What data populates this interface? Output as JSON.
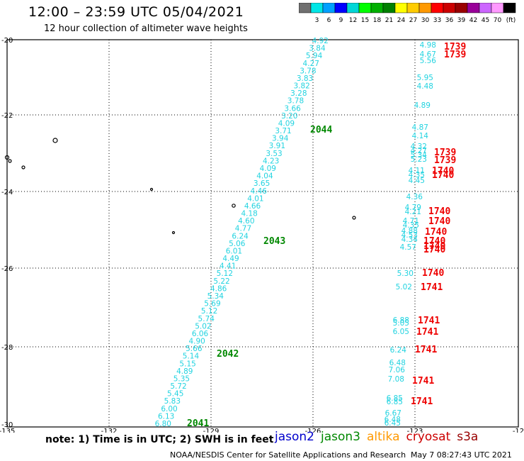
{
  "title": "12:00 – 23:59 UTC 05/04/2021",
  "subtitle": "12 hour collection of altimeter wave heights",
  "color_scale": {
    "colors": [
      "#707070",
      "#00e6e6",
      "#00a0ff",
      "#0000ff",
      "#00d6d6",
      "#00ff00",
      "#00b000",
      "#008000",
      "#ffff00",
      "#ffcc00",
      "#ff9900",
      "#ff0000",
      "#cc0000",
      "#990000",
      "#990099",
      "#cc66ff",
      "#ff99ff",
      "#000000"
    ],
    "labels": [
      "3",
      "6",
      "9",
      "12",
      "15",
      "18",
      "21",
      "24",
      "27",
      "30",
      "33",
      "36",
      "39",
      "42",
      "45",
      "70"
    ],
    "unit": "(ft)"
  },
  "axes": {
    "lon_labels": [
      "-135",
      "-132",
      "-129",
      "-126",
      "-123",
      "-12"
    ],
    "lat_labels": [
      "-20",
      "-22",
      "-24",
      "-26",
      "-28",
      "-30"
    ]
  },
  "track_times": {
    "jason3": [
      "2044",
      "2043",
      "2042",
      "2041"
    ],
    "cryosat": [
      "1739",
      "1739",
      "1739",
      "1739",
      "1740",
      "1740",
      "1740",
      "1740",
      "1740",
      "1740",
      "1740",
      "1740",
      "1740",
      "1741",
      "1741",
      "1741",
      "1741",
      "1741",
      "1741"
    ]
  },
  "jason3_track_values": [
    "4.92",
    "3.84",
    "5.94",
    "4.27",
    "3.78",
    "3.83",
    "3.82",
    "3.28",
    "3.78",
    "3.66",
    "3.20",
    "4.09",
    "3.71",
    "3.94",
    "3.91",
    "3.53",
    "4.23",
    "4.09",
    "4.04",
    "3.65",
    "4.46",
    "4.01",
    "4.66",
    "4.18",
    "4.60",
    "4.77",
    "6.24",
    "5.06",
    "6.01",
    "4.49",
    "4.41",
    "5.12",
    "5.22",
    "4.86",
    "5.34",
    "5.69",
    "5.12",
    "5.74",
    "5.02",
    "6.06",
    "4.90",
    "5.66",
    "5.14",
    "5.15",
    "4.89",
    "5.35",
    "5.72",
    "5.45",
    "5.83",
    "6.00",
    "6.13",
    "6.80"
  ],
  "cryosat_track_values": [
    "4.98",
    "4.67",
    "5.56",
    "5.95",
    "4.48",
    "4.89",
    "4.87",
    "4.14",
    "4.32",
    "4.27",
    "5.34",
    "5.23",
    "4.11",
    "4.35",
    "4.45",
    "4.36",
    "4.79",
    "4.21",
    "4.71",
    "4.35",
    "4.88",
    "4.53",
    "4.34",
    "4.57",
    "5.30",
    "5.02",
    "6.88",
    "5.05",
    "6.05",
    "6.24",
    "6.48",
    "7.06",
    "7.08",
    "6.85",
    "6.85",
    "6.67",
    "6.48",
    "6.45"
  ],
  "note": "note: 1) Time is in UTC; 2) SWH is in feet",
  "satellites": [
    {
      "name": "jason2",
      "color": "#0000cc"
    },
    {
      "name": "jason3",
      "color": "#008800"
    },
    {
      "name": "altika",
      "color": "#ff9900"
    },
    {
      "name": "cryosat",
      "color": "#cc0000"
    },
    {
      "name": "s3a",
      "color": "#990000"
    }
  ],
  "credit": "NOAA/NESDIS Center for Satellite Applications and Research",
  "timestamp": "May  7 08:27:43 UTC 2021"
}
